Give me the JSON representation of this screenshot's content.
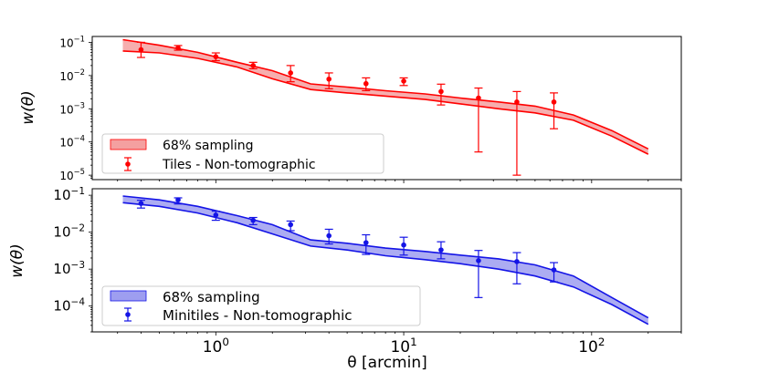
{
  "chart_data": [
    {
      "type": "line",
      "panel": "top",
      "xscale": "log",
      "yscale": "log",
      "xlim": [
        0.22,
        300
      ],
      "ylim": [
        7.35e-06,
        0.15
      ],
      "ylabel": "w(θ)",
      "y_ticks": [
        0.1,
        0.01,
        0.001,
        0.0001,
        1e-05
      ],
      "y_tick_labels": [
        {
          "base": "10",
          "exp": "−1"
        },
        {
          "base": "10",
          "exp": "−2"
        },
        {
          "base": "10",
          "exp": "−3"
        },
        {
          "base": "10",
          "exp": "−4"
        },
        {
          "base": "10",
          "exp": "−5"
        }
      ],
      "color": "#ff0000",
      "band_color": "#f4a0a0",
      "band": {
        "name": "68% sampling",
        "x": [
          0.32,
          0.5,
          0.8,
          1.3,
          2.0,
          3.2,
          5,
          8,
          13,
          20,
          32,
          50,
          80,
          128,
          200
        ],
        "upper": [
          0.12,
          0.082,
          0.05,
          0.025,
          0.014,
          0.0056,
          0.0045,
          0.0035,
          0.0028,
          0.0021,
          0.0016,
          0.0012,
          0.00065,
          0.00022,
          6.2e-05
        ],
        "lower": [
          0.055,
          0.048,
          0.033,
          0.018,
          0.008,
          0.0038,
          0.003,
          0.0024,
          0.0019,
          0.0014,
          0.001,
          0.00075,
          0.00045,
          0.00015,
          4.3e-05
        ]
      },
      "points": {
        "name": "Tiles - Non-tomographic",
        "x": [
          0.4,
          0.63,
          1.0,
          1.58,
          2.5,
          4.0,
          6.3,
          10.0,
          15.8,
          25.0,
          40.0,
          63.0
        ],
        "y": [
          0.06,
          0.068,
          0.037,
          0.02,
          0.012,
          0.0078,
          0.0057,
          0.0068,
          0.0033,
          0.0021,
          0.0016,
          0.0016
        ],
        "yerr_low": [
          0.035,
          0.058,
          0.028,
          0.016,
          0.0065,
          0.004,
          0.0035,
          0.005,
          0.0013,
          5e-05,
          1e-05,
          0.00025
        ],
        "yerr_high": [
          0.1,
          0.08,
          0.048,
          0.025,
          0.02,
          0.012,
          0.0085,
          0.0085,
          0.0055,
          0.0042,
          0.0033,
          0.003
        ]
      },
      "legend": [
        {
          "kind": "band",
          "label": "68% sampling"
        },
        {
          "kind": "errorbar",
          "label": "Tiles - Non-tomographic"
        }
      ],
      "legend_loc": "lower-left"
    },
    {
      "type": "line",
      "panel": "bottom",
      "xscale": "log",
      "yscale": "log",
      "xlim": [
        0.22,
        300
      ],
      "ylim": [
        2e-05,
        0.15
      ],
      "xlabel": "θ [arcmin]",
      "ylabel": "w(θ)",
      "x_ticks": [
        1,
        10,
        100
      ],
      "x_tick_labels": [
        {
          "base": "10",
          "exp": "0"
        },
        {
          "base": "10",
          "exp": "1"
        },
        {
          "base": "10",
          "exp": "2"
        }
      ],
      "y_ticks": [
        0.1,
        0.01,
        0.001,
        0.0001
      ],
      "y_tick_labels": [
        {
          "base": "10",
          "exp": "−1"
        },
        {
          "base": "10",
          "exp": "−2"
        },
        {
          "base": "10",
          "exp": "−3"
        },
        {
          "base": "10",
          "exp": "−4"
        }
      ],
      "color": "#1414e6",
      "band_color": "#9e9ef0",
      "band": {
        "name": "68% sampling",
        "x": [
          0.32,
          0.5,
          0.8,
          1.3,
          2.0,
          3.2,
          5,
          8,
          13,
          20,
          32,
          50,
          80,
          128,
          200
        ],
        "upper": [
          0.095,
          0.075,
          0.05,
          0.028,
          0.016,
          0.0062,
          0.005,
          0.0037,
          0.003,
          0.0024,
          0.0019,
          0.0013,
          0.00065,
          0.00017,
          4.8e-05
        ],
        "lower": [
          0.063,
          0.05,
          0.033,
          0.018,
          0.009,
          0.0042,
          0.0033,
          0.0023,
          0.0018,
          0.0014,
          0.001,
          0.00065,
          0.00033,
          0.00011,
          3.2e-05
        ]
      },
      "points": {
        "name": "Minitiles - Non-tomographic",
        "x": [
          0.4,
          0.63,
          1.0,
          1.58,
          2.5,
          4.0,
          6.3,
          10.0,
          15.8,
          25.0,
          40.0,
          63.0
        ],
        "y": [
          0.06,
          0.075,
          0.029,
          0.021,
          0.016,
          0.008,
          0.0052,
          0.0045,
          0.0033,
          0.0017,
          0.0016,
          0.00095
        ],
        "yerr_low": [
          0.045,
          0.058,
          0.021,
          0.016,
          0.011,
          0.0048,
          0.0025,
          0.0024,
          0.0019,
          0.00017,
          0.0004,
          0.00045
        ],
        "yerr_high": [
          0.073,
          0.085,
          0.037,
          0.025,
          0.02,
          0.012,
          0.0085,
          0.0073,
          0.0055,
          0.0032,
          0.0028,
          0.0015
        ]
      },
      "legend": [
        {
          "kind": "band",
          "label": "68% sampling"
        },
        {
          "kind": "errorbar",
          "label": "Minitiles - Non-tomographic"
        }
      ],
      "legend_loc": "lower-left"
    }
  ]
}
